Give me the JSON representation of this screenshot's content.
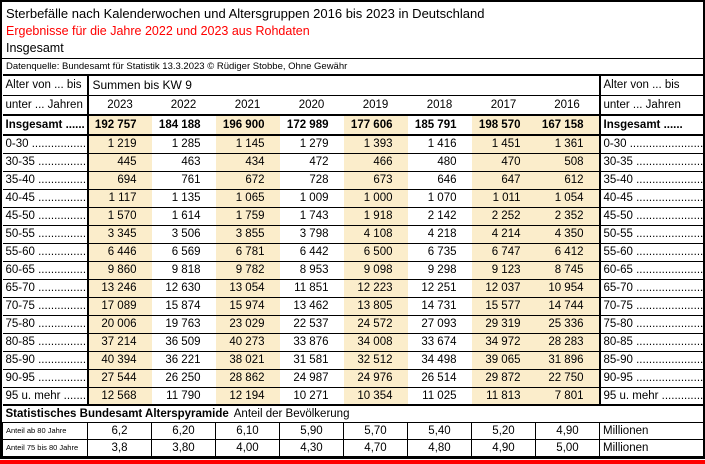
{
  "header": {
    "title": "Sterbefälle nach Kalenderwochen und Altersgruppen 2016 bis 2023 in Deutschland",
    "subtitle_red": "Ergebnisse für die Jahre 2022 und 2023 aus Rohdaten",
    "scope": "Insgesamt",
    "source": "Datenquelle: Bundesamt für Statistik 13.3.2023 © Rüdiger Stobbe, Ohne Gewähr"
  },
  "colors": {
    "highlight": "#FBEDCB",
    "accent_red": "#FF0000"
  },
  "table": {
    "corner_label_top": "Alter von ... bis",
    "corner_label_bottom": "unter ... Jahren",
    "span_header": "Summen bis KW 9",
    "years": [
      "2023",
      "2022",
      "2021",
      "2020",
      "2019",
      "2018",
      "2017",
      "2016"
    ],
    "highlight_cols": [
      0,
      2,
      4,
      6,
      7
    ],
    "total_row": {
      "label": "Insgesamt ......",
      "values": [
        "192 757",
        "184 188",
        "196 900",
        "172 989",
        "177 606",
        "185 791",
        "198 570",
        "167 158"
      ]
    },
    "rows": [
      {
        "label": "0-30 ..........................",
        "values": [
          "1 219",
          "1 285",
          "1 145",
          "1 279",
          "1 393",
          "1 416",
          "1 451",
          "1 361"
        ]
      },
      {
        "label": "30-35 ........................",
        "values": [
          "445",
          "463",
          "434",
          "472",
          "466",
          "480",
          "470",
          "508"
        ]
      },
      {
        "label": "35-40 ........................",
        "values": [
          "694",
          "761",
          "672",
          "728",
          "673",
          "646",
          "647",
          "612"
        ]
      },
      {
        "label": "40-45 ........................",
        "values": [
          "1 117",
          "1 135",
          "1 065",
          "1 009",
          "1 000",
          "1 070",
          "1 011",
          "1 054"
        ]
      },
      {
        "label": "45-50 ........................",
        "values": [
          "1 570",
          "1 614",
          "1 759",
          "1 743",
          "1 918",
          "2 142",
          "2 252",
          "2 352"
        ]
      },
      {
        "label": "50-55 ........................",
        "values": [
          "3 345",
          "3 506",
          "3 855",
          "3 798",
          "4 108",
          "4 218",
          "4 214",
          "4 350"
        ]
      },
      {
        "label": "55-60 ........................",
        "values": [
          "6 446",
          "6 569",
          "6 781",
          "6 442",
          "6 500",
          "6 735",
          "6 747",
          "6 412"
        ]
      },
      {
        "label": "60-65 ........................",
        "values": [
          "9 860",
          "9 818",
          "9 782",
          "8 953",
          "9 098",
          "9 298",
          "9 123",
          "8 745"
        ]
      },
      {
        "label": "65-70 ........................",
        "values": [
          "13 246",
          "12 630",
          "13 054",
          "11 851",
          "12 223",
          "12 251",
          "12 037",
          "10 954"
        ]
      },
      {
        "label": "70-75 ........................",
        "values": [
          "17 089",
          "15 874",
          "15 974",
          "13 462",
          "13 805",
          "14 731",
          "15 577",
          "14 744"
        ]
      },
      {
        "label": "75-80 ........................",
        "values": [
          "20 006",
          "19 763",
          "23 029",
          "22 537",
          "24 572",
          "27 093",
          "29 319",
          "25 336"
        ]
      },
      {
        "label": "80-85 ........................",
        "values": [
          "37 214",
          "36 509",
          "40 273",
          "33 876",
          "34 008",
          "33 674",
          "34 972",
          "28 283"
        ]
      },
      {
        "label": "85-90 ........................",
        "values": [
          "40 394",
          "36 221",
          "38 021",
          "31 581",
          "32 512",
          "34 498",
          "39 065",
          "31 896"
        ]
      },
      {
        "label": "90-95 ........................",
        "values": [
          "27 544",
          "26 250",
          "28 862",
          "24 987",
          "24 976",
          "26 514",
          "29 872",
          "22 750"
        ]
      },
      {
        "label": "95 u. mehr ...............",
        "values": [
          "12 568",
          "11 790",
          "12 194",
          "10 271",
          "10 354",
          "11 025",
          "11 813",
          "7 801"
        ]
      }
    ],
    "section_bold": "Statistisches Bundesamt Alterspyramide",
    "section_regular": "Anteil der Bevölkerung",
    "footer_rows": [
      {
        "label": "Anteil ab 80 Jahre",
        "values": [
          "6,2",
          "6,20",
          "6,10",
          "5,90",
          "5,70",
          "5,40",
          "5,20",
          "4,90"
        ],
        "unit": "Millionen"
      },
      {
        "label": "Anteil 75 bis 80 Jahre",
        "values": [
          "3,8",
          "3,80",
          "4,00",
          "4,30",
          "4,70",
          "4,80",
          "4,90",
          "5,00"
        ],
        "unit": "Millionen"
      }
    ]
  }
}
